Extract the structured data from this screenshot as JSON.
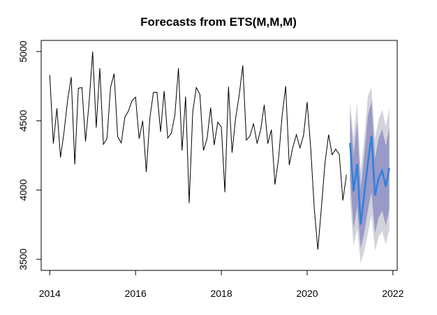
{
  "chart_data": {
    "type": "line",
    "title": "Forecasts from ETS(M,M,M)",
    "xlabel": "",
    "ylabel": "",
    "xlim": [
      2013.8,
      2022.1
    ],
    "ylim": [
      3420,
      5080
    ],
    "x_ticks": [
      2014,
      2016,
      2018,
      2020,
      2022
    ],
    "x_tick_labels": [
      "2014",
      "2016",
      "2018",
      "2020",
      "2022"
    ],
    "y_ticks": [
      3500,
      4000,
      4500,
      5000
    ],
    "y_tick_labels": [
      "3500",
      "4000",
      "4500",
      "5000"
    ],
    "grid": false,
    "legend": "none",
    "history": {
      "start_year": 2014.0,
      "step": 0.083333,
      "color": "#000000",
      "values": [
        4830,
        4335,
        4590,
        4235,
        4420,
        4650,
        4815,
        4185,
        4735,
        4740,
        4350,
        4630,
        5000,
        4450,
        4880,
        4330,
        4370,
        4740,
        4840,
        4385,
        4340,
        4525,
        4570,
        4645,
        4670,
        4370,
        4500,
        4130,
        4520,
        4705,
        4705,
        4420,
        4715,
        4375,
        4410,
        4540,
        4880,
        4285,
        4675,
        3905,
        4565,
        4740,
        4690,
        4285,
        4370,
        4595,
        4325,
        4490,
        4455,
        3985,
        4745,
        4270,
        4520,
        4685,
        4900,
        4360,
        4390,
        4480,
        4335,
        4435,
        4615,
        4335,
        4435,
        4040,
        4225,
        4535,
        4750,
        4180,
        4310,
        4400,
        4305,
        4395,
        4635,
        4305,
        3865,
        3570,
        3875,
        4195,
        4400,
        4255,
        4295,
        4255,
        3925,
        4110
      ]
    },
    "forecast": {
      "start_year": 2021.0,
      "step": 0.083333,
      "color": "#2F7FDF",
      "inner_color": "#9A9AC8",
      "outer_color": "#D3D3DC",
      "mean": [
        4340,
        3990,
        4190,
        3750,
        3975,
        4195,
        4390,
        3960,
        4085,
        4140,
        4025,
        4160
      ],
      "lo80": [
        4085,
        3720,
        3880,
        3580,
        3695,
        3855,
        3985,
        3690,
        3800,
        3850,
        3745,
        3860
      ],
      "hi80": [
        4575,
        4250,
        4490,
        4010,
        4255,
        4540,
        4640,
        4230,
        4370,
        4440,
        4320,
        4450
      ],
      "lo95": [
        3940,
        3595,
        3720,
        3470,
        3560,
        3690,
        3820,
        3560,
        3660,
        3700,
        3610,
        3715
      ],
      "hi95": [
        4640,
        4380,
        4630,
        4130,
        4380,
        4680,
        4740,
        4370,
        4510,
        4580,
        4460,
        4590
      ]
    }
  }
}
